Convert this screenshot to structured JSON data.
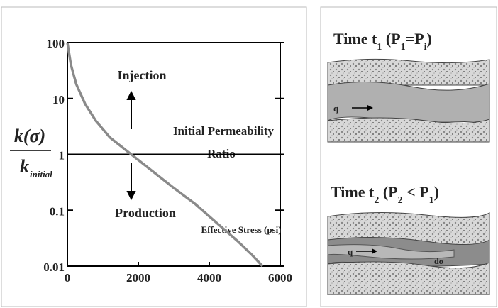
{
  "chart_data": {
    "type": "line",
    "ylabel": {
      "numerator": "k(σ)",
      "denominator": "k",
      "denominator_sub": "initial"
    },
    "xlabel": "Effective Stress (psi)",
    "annotations": {
      "up": "Injection",
      "down": "Production",
      "line1": "Initial Permeability",
      "line2": "Ratio"
    },
    "series": [
      {
        "color": "#8a8a8a",
        "x": [
          0,
          100,
          250,
          500,
          800,
          1200,
          1800,
          2400,
          3000,
          3600,
          4200,
          4800,
          5200,
          5500
        ],
        "values": [
          100,
          40,
          18,
          8,
          4,
          2,
          1,
          0.5,
          0.25,
          0.13,
          0.06,
          0.028,
          0.016,
          0.01
        ]
      }
    ],
    "xlim": [
      0,
      6000
    ],
    "xticks": [
      0,
      2000,
      4000,
      6000
    ],
    "ylim": [
      0.01,
      100
    ],
    "yticks": [
      0.01,
      0.1,
      1,
      10,
      100
    ],
    "log_y": true,
    "reference_y": 1
  },
  "diagram": {
    "panels": [
      {
        "title": [
          {
            "text": "Time t",
            "sub": false
          },
          {
            "text": "1",
            "sub": true
          },
          {
            "text": " (P",
            "sub": false
          },
          {
            "text": "1",
            "sub": true
          },
          {
            "text": "=P",
            "sub": false
          },
          {
            "text": "i",
            "sub": true
          },
          {
            "text": ")",
            "sub": false
          }
        ],
        "flow_label": "q"
      },
      {
        "title": [
          {
            "text": "Time t",
            "sub": false
          },
          {
            "text": "2",
            "sub": true
          },
          {
            "text": " (P",
            "sub": false
          },
          {
            "text": "2",
            "sub": true
          },
          {
            "text": " < P",
            "sub": false
          },
          {
            "text": "1",
            "sub": true
          },
          {
            "text": ")",
            "sub": false
          }
        ],
        "flow_label": "q",
        "stress_label": "dσ"
      }
    ]
  }
}
